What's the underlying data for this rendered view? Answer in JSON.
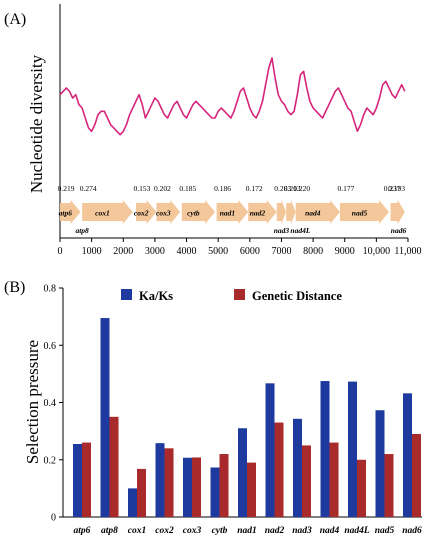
{
  "chart_data": [
    {
      "panel_label": "(A)",
      "type": "line",
      "ylabel": "Nucleotide diversity",
      "xlabel": "",
      "xlim": [
        0,
        11000
      ],
      "x_ticks": [
        0,
        1000,
        2000,
        3000,
        4000,
        5000,
        6000,
        7000,
        8000,
        9000,
        10000,
        11000
      ],
      "x_tick_labels": [
        "0",
        "1000",
        "2000",
        "3000",
        "4000",
        "5000",
        "6000",
        "7000",
        "8000",
        "9000",
        "10,000",
        "11,000"
      ],
      "y_ticks": [],
      "ylim": [
        0,
        0.45
      ],
      "line_color": "#d6247a",
      "series": [
        {
          "x": [
            0,
            100,
            200,
            300,
            400,
            500,
            600,
            700,
            800,
            900,
            1000,
            1100,
            1200,
            1300,
            1400,
            1500,
            1600,
            1700,
            1800,
            1900,
            2000,
            2100,
            2200,
            2300,
            2400,
            2500,
            2600,
            2700,
            2800,
            2900,
            3000,
            3100,
            3200,
            3300,
            3400,
            3500,
            3600,
            3700,
            3800,
            3900,
            4000,
            4100,
            4200,
            4300,
            4400,
            4500,
            4600,
            4700,
            4800,
            4900,
            5000,
            5100,
            5200,
            5300,
            5400,
            5500,
            5600,
            5700,
            5800,
            5900,
            6000,
            6100,
            6200,
            6300,
            6400,
            6500,
            6600,
            6700,
            6800,
            6900,
            7000,
            7100,
            7200,
            7300,
            7400,
            7500,
            7600,
            7700,
            7800,
            7900,
            8000,
            8100,
            8200,
            8300,
            8400,
            8500,
            8600,
            8700,
            8800,
            8900,
            9000,
            9100,
            9200,
            9300,
            9400,
            9500,
            9600,
            9700,
            9800,
            9900,
            10000,
            10100,
            10200,
            10300,
            10400,
            10500,
            10600,
            10700,
            10800,
            10900
          ],
          "y": [
            0.22,
            0.23,
            0.24,
            0.23,
            0.21,
            0.22,
            0.19,
            0.18,
            0.15,
            0.12,
            0.11,
            0.13,
            0.16,
            0.17,
            0.17,
            0.15,
            0.13,
            0.12,
            0.11,
            0.1,
            0.11,
            0.13,
            0.16,
            0.18,
            0.2,
            0.22,
            0.19,
            0.15,
            0.17,
            0.19,
            0.21,
            0.2,
            0.18,
            0.16,
            0.15,
            0.17,
            0.19,
            0.2,
            0.18,
            0.16,
            0.15,
            0.17,
            0.19,
            0.2,
            0.19,
            0.18,
            0.17,
            0.16,
            0.15,
            0.15,
            0.17,
            0.18,
            0.17,
            0.16,
            0.15,
            0.17,
            0.2,
            0.23,
            0.24,
            0.21,
            0.18,
            0.16,
            0.15,
            0.17,
            0.2,
            0.25,
            0.3,
            0.33,
            0.27,
            0.22,
            0.2,
            0.19,
            0.17,
            0.16,
            0.17,
            0.22,
            0.28,
            0.29,
            0.24,
            0.2,
            0.18,
            0.17,
            0.16,
            0.15,
            0.17,
            0.19,
            0.21,
            0.23,
            0.24,
            0.22,
            0.2,
            0.18,
            0.17,
            0.14,
            0.11,
            0.13,
            0.16,
            0.18,
            0.17,
            0.16,
            0.18,
            0.21,
            0.25,
            0.26,
            0.24,
            0.22,
            0.21,
            0.23,
            0.25,
            0.23
          ]
        }
      ],
      "gene_map": {
        "color": "#f3c79a",
        "top_genes": [
          {
            "name": "atp6",
            "start": 0,
            "end": 650,
            "value": "0.219"
          },
          {
            "name": "cox1",
            "start": 700,
            "end": 2300,
            "value": "0.274"
          },
          {
            "name": "cox2",
            "start": 2400,
            "end": 3050,
            "value": "0.153"
          },
          {
            "name": "cox3",
            "start": 3050,
            "end": 3800,
            "value": "0.202"
          },
          {
            "name": "cytb",
            "start": 3850,
            "end": 4900,
            "value": "0.185"
          },
          {
            "name": "nad1",
            "start": 4950,
            "end": 5950,
            "value": "0.186"
          },
          {
            "name": "nad2",
            "start": 5950,
            "end": 6850,
            "value": "0.172"
          },
          {
            "name": "",
            "start": 6850,
            "end": 7150,
            "value": "0.263"
          },
          {
            "name": "",
            "start": 7150,
            "end": 7450,
            "value": "0.213"
          },
          {
            "name": "nad4",
            "start": 7450,
            "end": 8850,
            "value": "0.220"
          },
          {
            "name": "nad5",
            "start": 8850,
            "end": 10400,
            "value": "0.177"
          },
          {
            "name": "",
            "start": 10450,
            "end": 10900,
            "value": "0.193"
          }
        ],
        "top_value_extra": {
          "label": "0.237",
          "x": 10500
        },
        "bottom_labels": [
          {
            "name": "atp8",
            "x": 700
          },
          {
            "name": "nad3",
            "x": 7000
          },
          {
            "name": "nad4L",
            "x": 7600
          },
          {
            "name": "nad6",
            "x": 10700
          }
        ]
      }
    },
    {
      "panel_label": "(B)",
      "type": "bar",
      "ylabel": "Selection pressure",
      "xlabel": "",
      "ylim": [
        0,
        0.8
      ],
      "y_ticks": [
        0,
        0.2,
        0.4,
        0.6,
        0.8
      ],
      "y_tick_labels": [
        "0",
        "0.2",
        "0.4",
        "0.6",
        "0.8"
      ],
      "legend_placement": "top",
      "categories": [
        "atp6",
        "atp8",
        "cox1",
        "cox2",
        "cox3",
        "cytb",
        "nad1",
        "nad2",
        "nad3",
        "nad4",
        "nad4L",
        "nad5",
        "nad6"
      ],
      "series": [
        {
          "name": "Ka/Ks",
          "color": "#1f3a9e",
          "values": [
            0.255,
            0.695,
            0.1,
            0.258,
            0.207,
            0.173,
            0.31,
            0.467,
            0.343,
            0.475,
            0.473,
            0.373,
            0.432
          ]
        },
        {
          "name": "Genetic Distance",
          "color": "#a82a2a",
          "values": [
            0.26,
            0.35,
            0.168,
            0.24,
            0.208,
            0.22,
            0.19,
            0.33,
            0.25,
            0.26,
            0.2,
            0.22,
            0.29
          ]
        }
      ]
    }
  ]
}
